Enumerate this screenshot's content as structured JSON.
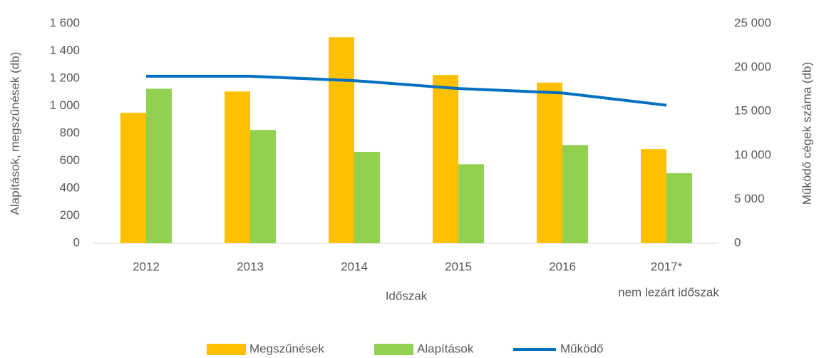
{
  "chart_data": {
    "type": "bar",
    "categories": [
      "2012",
      "2013",
      "2014",
      "2015",
      "2016",
      "2017*"
    ],
    "series": [
      {
        "name": "Megszűnések",
        "color": "#FFC000",
        "values": [
          950,
          1105,
          1500,
          1225,
          1170,
          685
        ]
      },
      {
        "name": "Alapítások",
        "color": "#92D050",
        "values": [
          1125,
          825,
          665,
          575,
          715,
          510
        ]
      },
      {
        "name": "Működő",
        "color": "#0070C0",
        "type": "line",
        "axis": "y2",
        "values": [
          19000,
          19000,
          18500,
          17600,
          17100,
          15700
        ]
      }
    ],
    "ylabel": "Alapítások, megszűnések (db)",
    "y2label": "Működő cégek száma (db)",
    "xlabel": "Időszak",
    "annotation": "nem lezárt időszak",
    "ylim": [
      0,
      1600
    ],
    "yticks": [
      0,
      200,
      400,
      600,
      800,
      {
        "value": 1000,
        "label": "1 000"
      },
      {
        "value": 1200,
        "label": "1 200"
      },
      {
        "value": 1400,
        "label": "1 400"
      },
      {
        "value": 1600,
        "label": "1 600"
      }
    ],
    "y2lim": [
      0,
      25000
    ],
    "y2ticks": [
      0,
      {
        "value": 5000,
        "label": "5 000"
      },
      {
        "value": 10000,
        "label": "10 000"
      },
      {
        "value": 15000,
        "label": "15 000"
      },
      {
        "value": 20000,
        "label": "20 000"
      },
      {
        "value": 25000,
        "label": "25 000"
      }
    ],
    "grid": false,
    "legend": "bottom"
  }
}
